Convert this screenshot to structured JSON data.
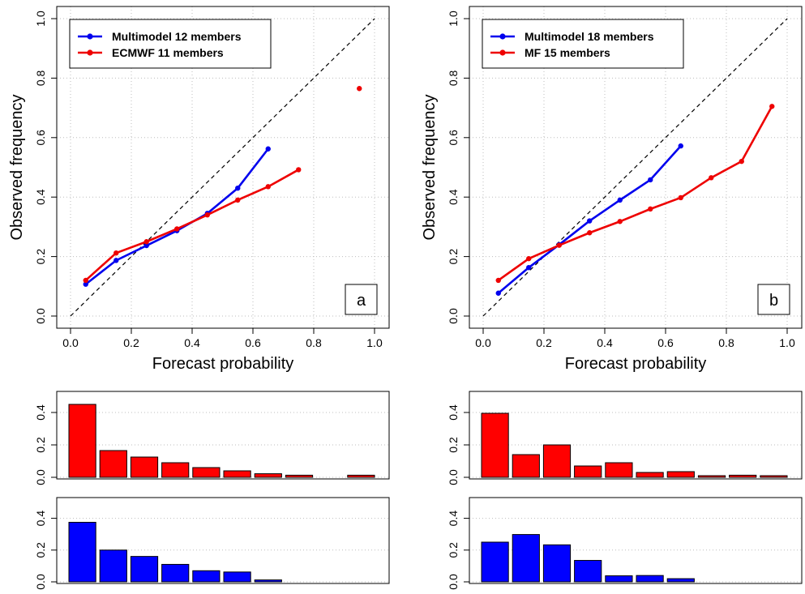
{
  "chart_data": [
    {
      "type": "line",
      "panel_label": "a",
      "xlabel": "Forecast probability",
      "ylabel": "Observed frequency",
      "xlim": [
        0,
        1
      ],
      "ylim": [
        0,
        1
      ],
      "xticks": [
        "0.0",
        "0.2",
        "0.4",
        "0.6",
        "0.8",
        "1.0"
      ],
      "yticks": [
        "0.0",
        "0.2",
        "0.4",
        "0.6",
        "0.8",
        "1.0"
      ],
      "grid": true,
      "diagonal": true,
      "legend": "top-left",
      "series": [
        {
          "name": "Multimodel 12 members",
          "color": "#0000ee",
          "x": [
            0.05,
            0.15,
            0.25,
            0.35,
            0.45,
            0.55,
            0.65
          ],
          "y": [
            0.107,
            0.187,
            0.237,
            0.287,
            0.345,
            0.43,
            0.562
          ]
        },
        {
          "name": "ECMWF 11 members",
          "color": "#ee0000",
          "x": [
            0.05,
            0.15,
            0.25,
            0.35,
            0.45,
            0.55,
            0.65,
            0.75
          ],
          "y": [
            0.12,
            0.212,
            0.25,
            0.293,
            0.34,
            0.39,
            0.435,
            0.492
          ],
          "isolated_x": [
            0.95
          ],
          "isolated_y": [
            0.765
          ]
        }
      ]
    },
    {
      "type": "line",
      "panel_label": "b",
      "xlabel": "Forecast probability",
      "ylabel": "Observed frequency",
      "xlim": [
        0,
        1
      ],
      "ylim": [
        0,
        1
      ],
      "xticks": [
        "0.0",
        "0.2",
        "0.4",
        "0.6",
        "0.8",
        "1.0"
      ],
      "yticks": [
        "0.0",
        "0.2",
        "0.4",
        "0.6",
        "0.8",
        "1.0"
      ],
      "grid": true,
      "diagonal": true,
      "legend": "top-left",
      "series": [
        {
          "name": "Multimodel 18 members",
          "color": "#0000ee",
          "x": [
            0.05,
            0.15,
            0.25,
            0.35,
            0.45,
            0.55,
            0.65
          ],
          "y": [
            0.077,
            0.163,
            0.24,
            0.32,
            0.39,
            0.458,
            0.572
          ]
        },
        {
          "name": "MF 15 members",
          "color": "#ee0000",
          "x": [
            0.05,
            0.15,
            0.25,
            0.35,
            0.45,
            0.55,
            0.65,
            0.75,
            0.85,
            0.95
          ],
          "y": [
            0.12,
            0.193,
            0.238,
            0.28,
            0.318,
            0.36,
            0.398,
            0.465,
            0.52,
            0.705
          ]
        }
      ]
    },
    {
      "type": "bar",
      "color": "#ff0000",
      "ylim": [
        0,
        0.5
      ],
      "yticks": [
        "0.0",
        "0.2",
        "0.4"
      ],
      "values": [
        0.45,
        0.165,
        0.125,
        0.09,
        0.06,
        0.04,
        0.022,
        0.013,
        0.0,
        0.013
      ]
    },
    {
      "type": "bar",
      "color": "#ff0000",
      "ylim": [
        0,
        0.5
      ],
      "yticks": [
        "0.0",
        "0.2",
        "0.4"
      ],
      "values": [
        0.395,
        0.14,
        0.2,
        0.07,
        0.09,
        0.03,
        0.035,
        0.01,
        0.013,
        0.01
      ]
    },
    {
      "type": "bar",
      "color": "#0000ff",
      "ylim": [
        0,
        0.5
      ],
      "yticks": [
        "0.0",
        "0.2",
        "0.4"
      ],
      "values": [
        0.375,
        0.2,
        0.16,
        0.11,
        0.07,
        0.062,
        0.012,
        0,
        0,
        0
      ]
    },
    {
      "type": "bar",
      "color": "#0000ff",
      "ylim": [
        0,
        0.5
      ],
      "yticks": [
        "0.0",
        "0.2",
        "0.4"
      ],
      "values": [
        0.25,
        0.298,
        0.233,
        0.135,
        0.038,
        0.04,
        0.02,
        0,
        0,
        0
      ]
    }
  ]
}
